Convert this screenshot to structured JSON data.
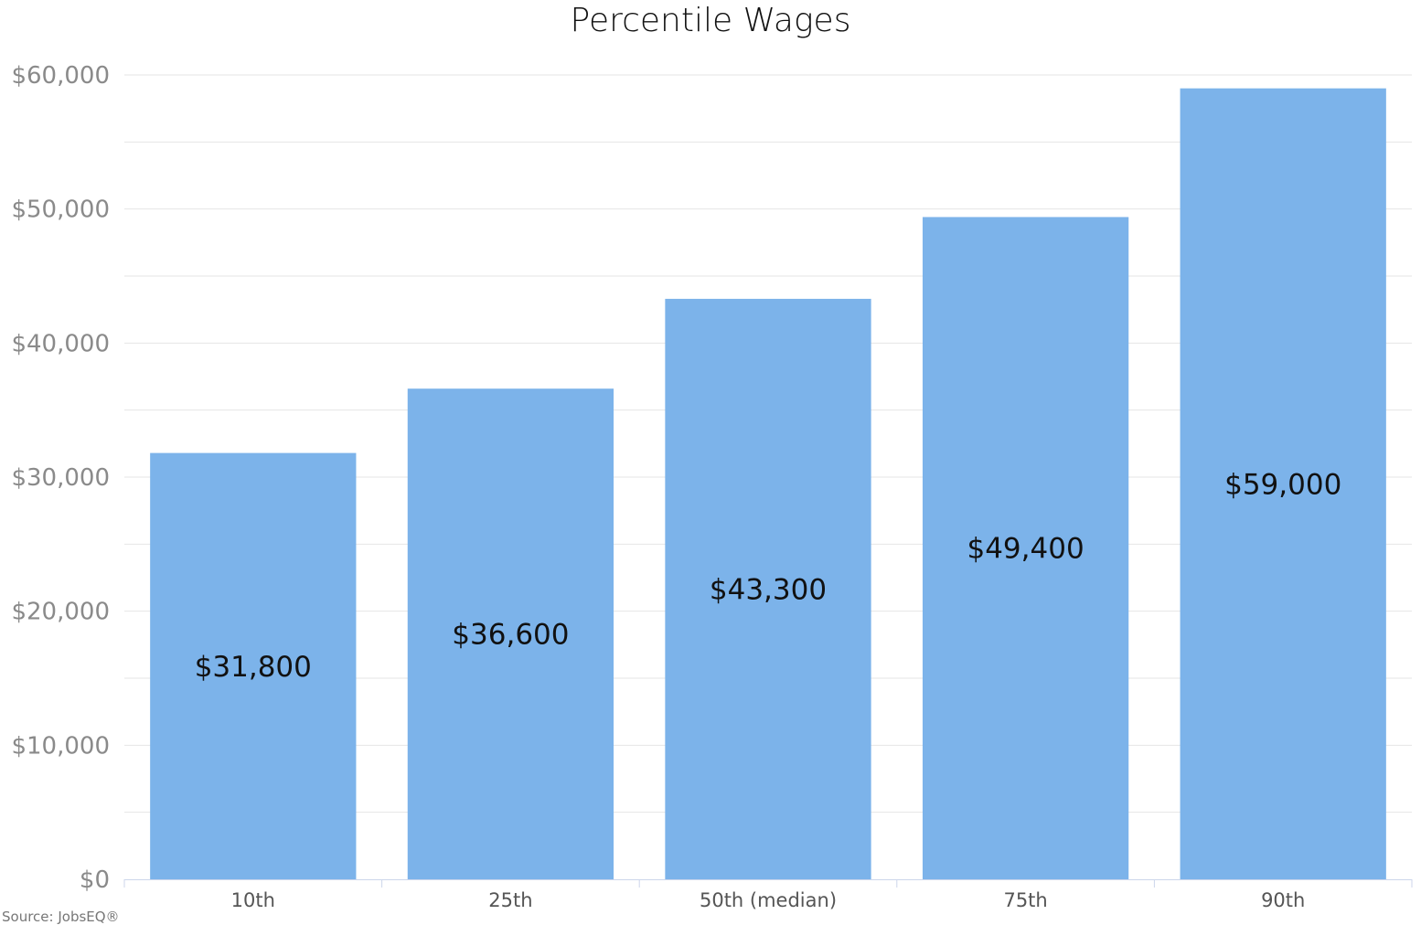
{
  "chart_data": {
    "type": "bar",
    "title": "Percentile Wages",
    "xlabel": "",
    "ylabel": "",
    "categories": [
      "10th",
      "25th",
      "50th (median)",
      "75th",
      "90th"
    ],
    "values": [
      31800,
      36600,
      43300,
      49400,
      59000
    ],
    "data_labels": [
      "$31,800",
      "$36,600",
      "$43,300",
      "$49,400",
      "$59,000"
    ],
    "y_ticks": [
      0,
      10000,
      20000,
      30000,
      40000,
      50000,
      60000
    ],
    "y_tick_labels": [
      "$0",
      "$10,000",
      "$20,000",
      "$30,000",
      "$40,000",
      "$50,000",
      "$60,000"
    ],
    "ylim": [
      0,
      60000
    ],
    "grid": true,
    "legend": "none",
    "bar_color": "#7cb3ea"
  },
  "source_text": "Source: JobsEQ®"
}
